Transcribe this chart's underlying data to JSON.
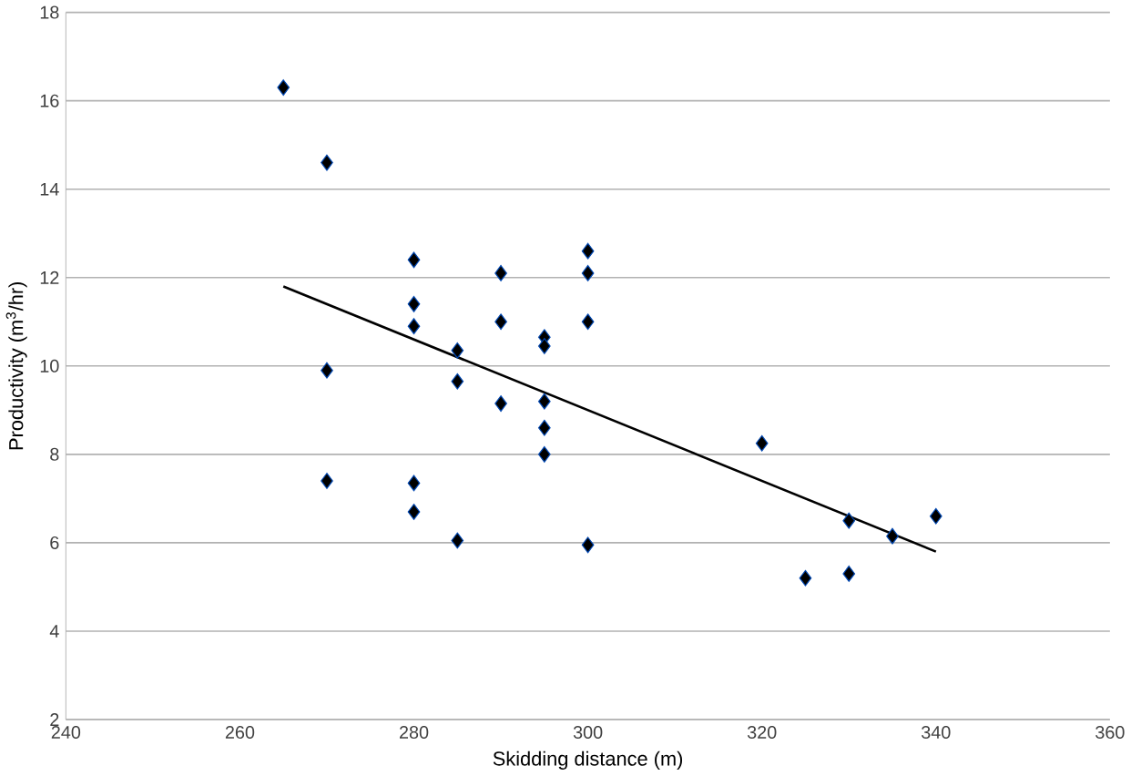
{
  "chart_data": {
    "type": "scatter",
    "xlabel": "Skidding distance (m)",
    "ylabel": "Productivity  (m$^{3}$/hr)",
    "xlim": [
      240,
      360
    ],
    "xticks": [
      240,
      260,
      280,
      300,
      320,
      340,
      360
    ],
    "ylim": [
      2,
      18
    ],
    "yticks": [
      2,
      4,
      6,
      8,
      10,
      12,
      14,
      16,
      18
    ],
    "grid": "y",
    "marker": "diamond",
    "series": [
      {
        "color": "#000000",
        "x": [
          265,
          270,
          270,
          270,
          280,
          280,
          280,
          280,
          280,
          285,
          285,
          285,
          290,
          290,
          290,
          295,
          295,
          295,
          295,
          295,
          300,
          300,
          300,
          300,
          320,
          325,
          330,
          330,
          335,
          340
        ],
        "values": [
          16.3,
          14.6,
          9.9,
          7.4,
          12.4,
          11.4,
          10.9,
          7.35,
          6.7,
          10.35,
          9.65,
          6.05,
          12.1,
          11.0,
          9.15,
          10.65,
          10.45,
          9.2,
          8.6,
          8.0,
          12.6,
          12.1,
          11.0,
          5.95,
          8.25,
          5.2,
          6.5,
          5.3,
          6.15,
          6.6
        ]
      },
      {
        "type": "line",
        "color": "#000000",
        "x": [
          265,
          340
        ],
        "values": [
          11.8,
          5.8
        ],
        "marker": "none"
      }
    ]
  }
}
